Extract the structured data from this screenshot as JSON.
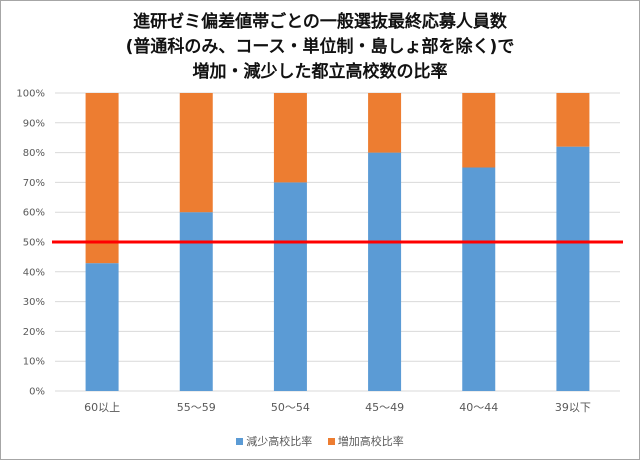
{
  "chart_data": {
    "type": "bar",
    "stacked": true,
    "title_lines": [
      "進研ゼミ偏差値帯ごとの一般選抜最終応募人員数",
      "(普通科のみ、コース・単位制・島しょ部を除く)で",
      "増加・減少した都立高校数の比率"
    ],
    "categories": [
      "60以上",
      "55～59",
      "50～54",
      "45～49",
      "40～44",
      "39以下"
    ],
    "series": [
      {
        "name": "減少高校比率",
        "color": "#5b9bd5",
        "values": [
          42.9,
          60,
          70,
          80,
          75,
          82
        ]
      },
      {
        "name": "増加高校比率",
        "color": "#ed7d31",
        "values": [
          57.1,
          40,
          30,
          20,
          25,
          18
        ]
      }
    ],
    "y_ticks": [
      "0%",
      "10%",
      "20%",
      "30%",
      "40%",
      "50%",
      "60%",
      "70%",
      "80%",
      "90%",
      "100%"
    ],
    "ylim": [
      0,
      100
    ],
    "reference_line": {
      "value": 50,
      "color": "#ff0000"
    },
    "grid": true,
    "legend_position": "bottom"
  }
}
